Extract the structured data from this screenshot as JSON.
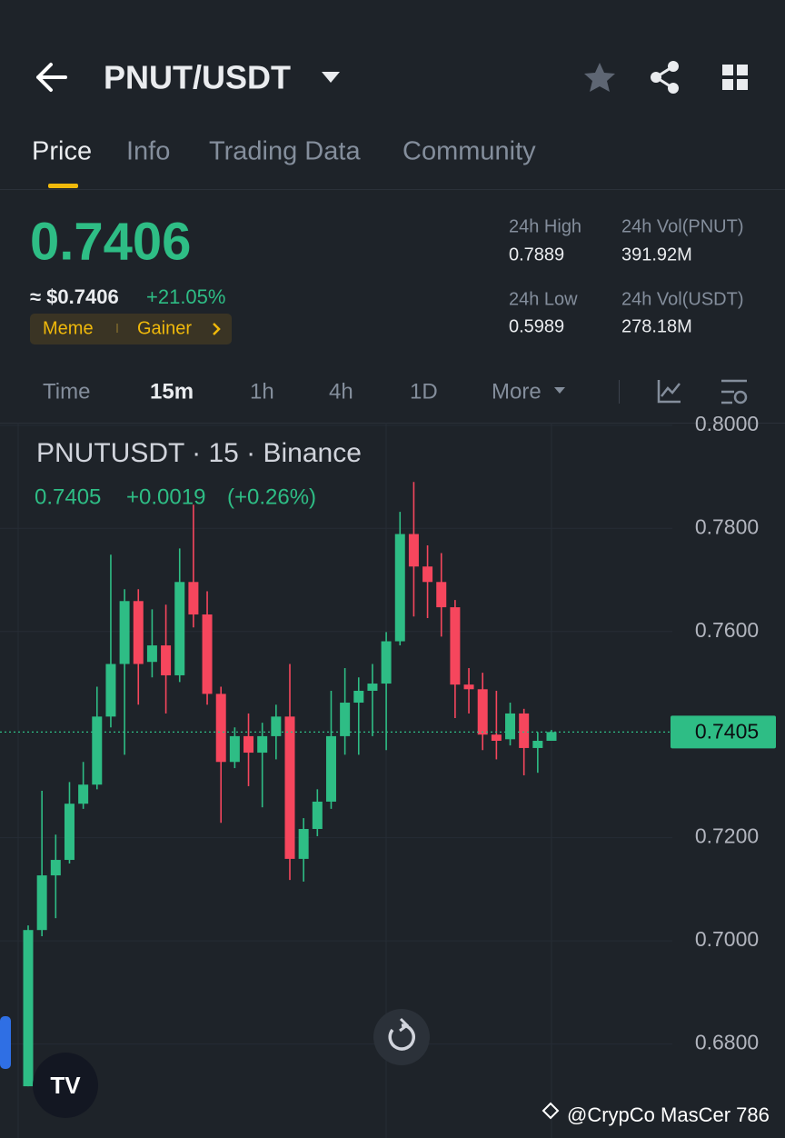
{
  "header": {
    "title": "PNUT/USDT"
  },
  "tabs": [
    "Price",
    "Info",
    "Trading Data",
    "Community"
  ],
  "price": "0.7406",
  "usd_price": "≈ $0.7406",
  "change": "+21.05%",
  "tags": [
    "Meme",
    "Gainer"
  ],
  "stats": [
    {
      "label": "24h High",
      "value": "0.7889"
    },
    {
      "label": "24h Vol(PNUT)",
      "value": "391.92M"
    },
    {
      "label": "24h Low",
      "value": "0.5989"
    },
    {
      "label": "24h Vol(USDT)",
      "value": "278.18M"
    }
  ],
  "intervals": [
    "Time",
    "15m",
    "1h",
    "4h",
    "1D",
    "More"
  ],
  "watermark": "@CrypCo MasCer 786",
  "chart_data": {
    "type": "candlestick",
    "title": "PNUTUSDT · 15 · Binance",
    "legend": {
      "close": "0.7405",
      "change": "+0.0019",
      "change_pct": "(+0.26%)"
    },
    "up_color": "#2ebd85",
    "down_color": "#f6465d",
    "open": [
      0.6718,
      0.7021,
      0.7127,
      0.7157,
      0.7266,
      0.7303,
      0.7435,
      0.7537,
      0.7659,
      0.7541,
      0.7573,
      0.7515,
      0.7696,
      0.7633,
      0.7479,
      0.7347,
      0.7397,
      0.7365,
      0.7397,
      0.7435,
      0.7159,
      0.7217,
      0.727,
      0.7397,
      0.7462,
      0.7485,
      0.7499,
      0.7581,
      0.7789,
      0.7726,
      0.7696,
      0.7647,
      0.7497,
      0.7488,
      0.74,
      0.7391,
      0.7441,
      0.7374,
      0.7388
    ],
    "high": [
      0.703,
      0.7291,
      0.7206,
      0.7308,
      0.7347,
      0.7493,
      0.7749,
      0.7682,
      0.7682,
      0.7643,
      0.7652,
      0.7761,
      0.7846,
      0.7678,
      0.7493,
      0.7414,
      0.7441,
      0.7423,
      0.7458,
      0.7537,
      0.7238,
      0.7294,
      0.7485,
      0.7529,
      0.7511,
      0.7537,
      0.7599,
      0.7832,
      0.789,
      0.7767,
      0.7752,
      0.7661,
      0.7529,
      0.752,
      0.7485,
      0.7462,
      0.745,
      0.7405,
      0.7409
    ],
    "low": [
      0.6718,
      0.7009,
      0.7044,
      0.715,
      0.7256,
      0.7294,
      0.7414,
      0.7361,
      0.7458,
      0.7511,
      0.7441,
      0.7502,
      0.7608,
      0.7458,
      0.7229,
      0.7335,
      0.73,
      0.7259,
      0.7352,
      0.7118,
      0.7115,
      0.7203,
      0.7256,
      0.7361,
      0.7361,
      0.7397,
      0.737,
      0.7573,
      0.7629,
      0.7626,
      0.759,
      0.7432,
      0.7441,
      0.737,
      0.7352,
      0.7379,
      0.7321,
      0.7326,
      0.7388
    ],
    "close": [
      0.7021,
      0.7127,
      0.7157,
      0.7266,
      0.7303,
      0.7435,
      0.7537,
      0.7659,
      0.7537,
      0.7573,
      0.7515,
      0.7696,
      0.7633,
      0.7479,
      0.7347,
      0.7397,
      0.7365,
      0.7397,
      0.7435,
      0.7159,
      0.7217,
      0.727,
      0.7397,
      0.7462,
      0.7485,
      0.7499,
      0.7581,
      0.7789,
      0.7726,
      0.7696,
      0.7647,
      0.7497,
      0.7488,
      0.74,
      0.7388,
      0.7441,
      0.7374,
      0.7388,
      0.7405
    ],
    "last_price": 0.7405,
    "ylim": [
      0.663,
      0.8005
    ],
    "yticks": [
      {
        "value": 0.68,
        "label": "0.6800"
      },
      {
        "value": 0.7,
        "label": "0.7000"
      },
      {
        "value": 0.72,
        "label": "0.7200"
      },
      {
        "value": 0.76,
        "label": "0.7600"
      },
      {
        "value": 0.78,
        "label": "0.7800"
      },
      {
        "value": 0.8,
        "label": "0.8000"
      }
    ],
    "grid": true
  }
}
